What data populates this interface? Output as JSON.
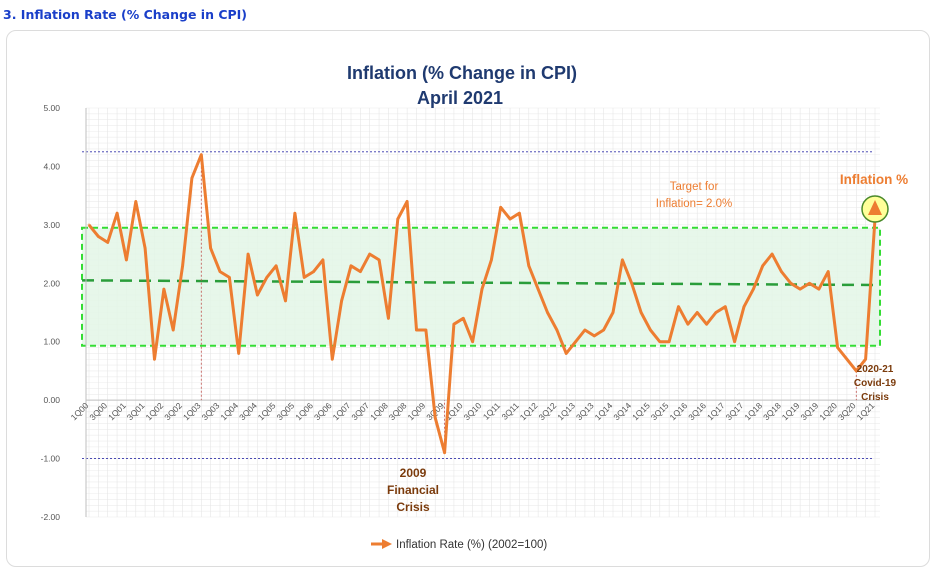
{
  "section_heading": "3. Inflation Rate (% Change in CPI)",
  "colors": {
    "line": "#ed7d31",
    "band_border": "#33dd33",
    "band_fill": "#e3f6e6",
    "target_line": "#2a9d3a",
    "title": "#1f3a70",
    "annotation_dark": "#7b3b0c",
    "annotation_orange": "#ed7d31",
    "dotted_ref": "#3333aa"
  },
  "chart_data": {
    "type": "line",
    "title": "Inflation (% Change in CPI)",
    "subtitle": "April 2021",
    "xlabel": "",
    "ylabel": "",
    "ylim": [
      -2.0,
      5.0
    ],
    "yticks": [
      "5.00",
      "4.00",
      "3.00",
      "2.00",
      "1.00",
      "0.00",
      "-1.00",
      "-2.00"
    ],
    "ytick_values": [
      5,
      4,
      3,
      2,
      1,
      0,
      -1,
      -2
    ],
    "grid": true,
    "legend": {
      "position": "bottom",
      "label": "Inflation Rate (%) (2002=100)"
    },
    "x": [
      "1Q00",
      "2Q00",
      "3Q00",
      "4Q00",
      "1Q01",
      "2Q01",
      "3Q01",
      "4Q01",
      "1Q02",
      "2Q02",
      "3Q02",
      "4Q02",
      "1Q03",
      "2Q03",
      "3Q03",
      "4Q03",
      "1Q04",
      "2Q04",
      "3Q04",
      "4Q04",
      "1Q05",
      "2Q05",
      "3Q05",
      "4Q05",
      "1Q06",
      "2Q06",
      "3Q06",
      "4Q06",
      "1Q07",
      "2Q07",
      "3Q07",
      "4Q07",
      "1Q08",
      "2Q08",
      "3Q08",
      "4Q08",
      "1Q09",
      "2Q09",
      "3Q09",
      "4Q09",
      "1Q10",
      "2Q10",
      "3Q10",
      "4Q10",
      "1Q11",
      "2Q11",
      "3Q11",
      "4Q11",
      "1Q12",
      "2Q12",
      "3Q12",
      "4Q12",
      "1Q13",
      "2Q13",
      "3Q13",
      "4Q13",
      "1Q14",
      "2Q14",
      "3Q14",
      "4Q14",
      "1Q15",
      "2Q15",
      "3Q15",
      "4Q15",
      "1Q16",
      "2Q16",
      "3Q16",
      "4Q16",
      "1Q17",
      "2Q17",
      "3Q17",
      "4Q17",
      "1Q18",
      "2Q18",
      "3Q18",
      "4Q18",
      "1Q19",
      "2Q19",
      "3Q19",
      "4Q19",
      "1Q20",
      "2Q20",
      "3Q20",
      "4Q20",
      "1Q21"
    ],
    "tick_labels": [
      "1Q00",
      "3Q00",
      "1Q01",
      "3Q01",
      "1Q02",
      "3Q02",
      "1Q03",
      "3Q03",
      "1Q04",
      "3Q04",
      "1Q05",
      "3Q05",
      "1Q06",
      "3Q06",
      "1Q07",
      "3Q07",
      "1Q08",
      "3Q08",
      "1Q09",
      "3Q09",
      "1Q10",
      "3Q10",
      "1Q11",
      "3Q11",
      "1Q12",
      "3Q12",
      "1Q13",
      "3Q13",
      "1Q14",
      "3Q14",
      "1Q15",
      "3Q15",
      "1Q16",
      "3Q16",
      "1Q17",
      "3Q17",
      "1Q18",
      "3Q18",
      "1Q19",
      "3Q19",
      "1Q20",
      "3Q20",
      "1Q21"
    ],
    "series": [
      {
        "name": "Inflation Rate (%) (2002=100)",
        "values": [
          3.0,
          2.8,
          2.7,
          3.2,
          2.4,
          3.4,
          2.6,
          0.7,
          1.9,
          1.2,
          2.3,
          3.8,
          4.2,
          2.6,
          2.2,
          2.1,
          0.8,
          2.5,
          1.8,
          2.1,
          2.3,
          1.7,
          3.2,
          2.1,
          2.2,
          2.4,
          0.7,
          1.7,
          2.3,
          2.2,
          2.5,
          2.4,
          1.4,
          3.1,
          3.4,
          1.2,
          1.2,
          -0.3,
          -0.9,
          1.3,
          1.4,
          1.0,
          1.9,
          2.4,
          3.3,
          3.1,
          3.2,
          2.3,
          1.9,
          1.5,
          1.2,
          0.8,
          1.0,
          1.2,
          1.1,
          1.2,
          1.5,
          2.4,
          2.0,
          1.5,
          1.2,
          1.0,
          1.0,
          1.6,
          1.3,
          1.5,
          1.3,
          1.5,
          1.6,
          1.0,
          1.6,
          1.9,
          2.3,
          2.5,
          2.2,
          2.0,
          1.9,
          2.0,
          1.9,
          2.2,
          0.9,
          0.7,
          0.5,
          0.7,
          3.1
        ]
      }
    ],
    "target_band": {
      "upper": 2.95,
      "lower": 0.93,
      "target": 2.0
    },
    "reference_lines": [
      4.25,
      -1.0
    ],
    "annotations": {
      "target_label": [
        "Target for",
        "Inflation= 2.0%"
      ],
      "inflation_label": "Inflation %",
      "crisis_2009": [
        "2009",
        "Financial",
        "Crisis"
      ],
      "covid": [
        "2020-21",
        "Covid-19",
        "Crisis"
      ]
    }
  }
}
